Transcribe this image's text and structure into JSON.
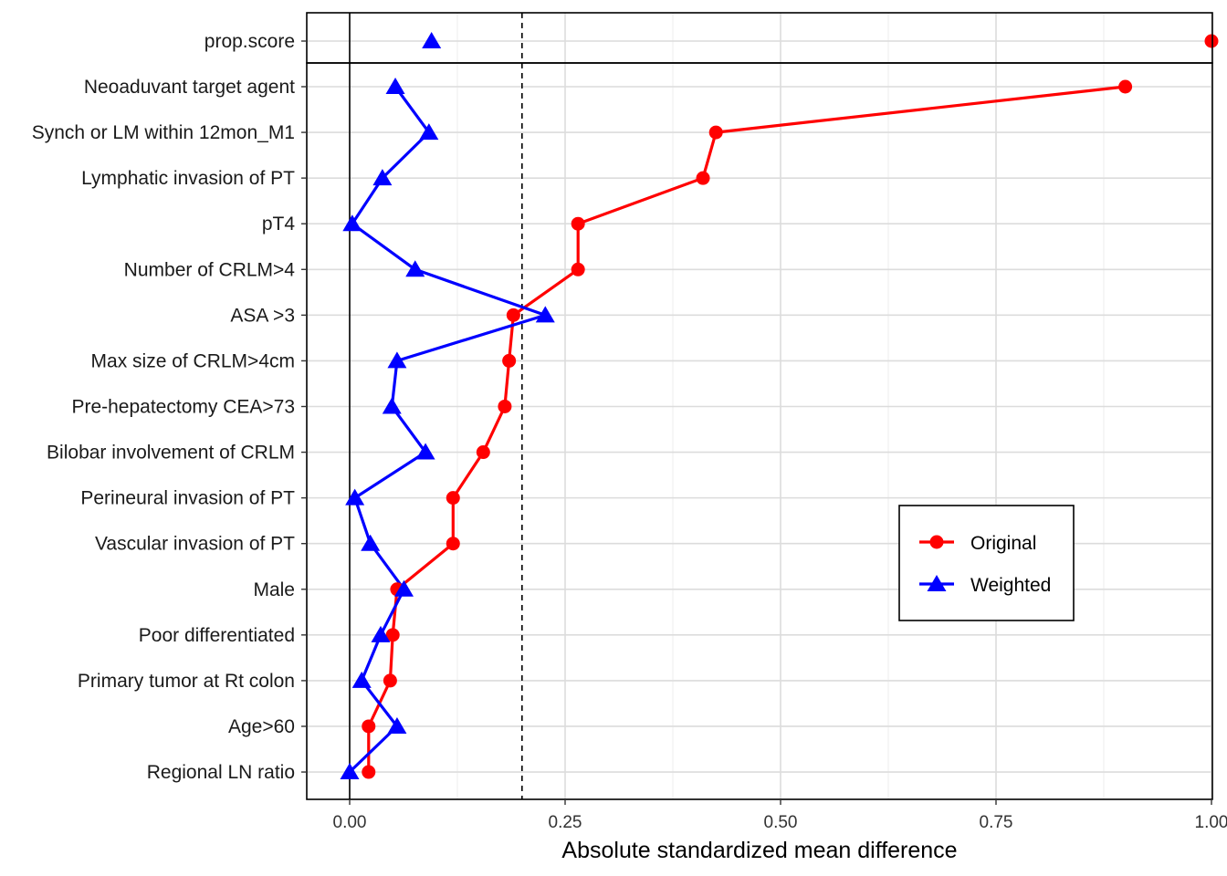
{
  "chart_data": {
    "type": "line",
    "xlabel": "Absolute standardized mean difference",
    "ylabel": "",
    "xlim": [
      0,
      1
    ],
    "x_ticks": [
      0,
      0.25,
      0.5,
      0.75,
      1
    ],
    "x_tick_labels": [
      "0.00",
      "0.25",
      "0.50",
      "0.75",
      "1.00"
    ],
    "threshold": 0.2,
    "grid": true,
    "legend_position": "bottom-right",
    "top_panel": {
      "categories": [
        "prop.score"
      ],
      "series": [
        {
          "name": "Original",
          "values": [
            1.0
          ]
        },
        {
          "name": "Weighted",
          "values": [
            0.095
          ]
        }
      ]
    },
    "categories": [
      "Neoaduvant target agent",
      "Synch or LM within 12mon_M1",
      "Lymphatic invasion of PT",
      "pT4",
      "Number of CRLM>4",
      "ASA >3",
      "Max size of CRLM>4cm",
      "Pre-hepatectomy CEA>73",
      "Bilobar involvement of CRLM",
      "Perineural invasion of PT",
      "Vascular invasion of PT",
      "Male",
      "Poor differentiated",
      "Primary tumor at Rt colon",
      "Age>60",
      "Regional LN ratio"
    ],
    "series": [
      {
        "name": "Original",
        "color": "#ff0000",
        "marker": "circle",
        "values": [
          0.9,
          0.425,
          0.41,
          0.265,
          0.265,
          0.19,
          0.185,
          0.18,
          0.155,
          0.12,
          0.12,
          0.055,
          0.05,
          0.047,
          0.022,
          0.022
        ]
      },
      {
        "name": "Weighted",
        "color": "#0000ff",
        "marker": "triangle",
        "values": [
          0.053,
          0.092,
          0.038,
          0.003,
          0.076,
          0.227,
          0.055,
          0.049,
          0.088,
          0.006,
          0.024,
          0.063,
          0.036,
          0.014,
          0.055,
          0.0
        ]
      }
    ]
  }
}
